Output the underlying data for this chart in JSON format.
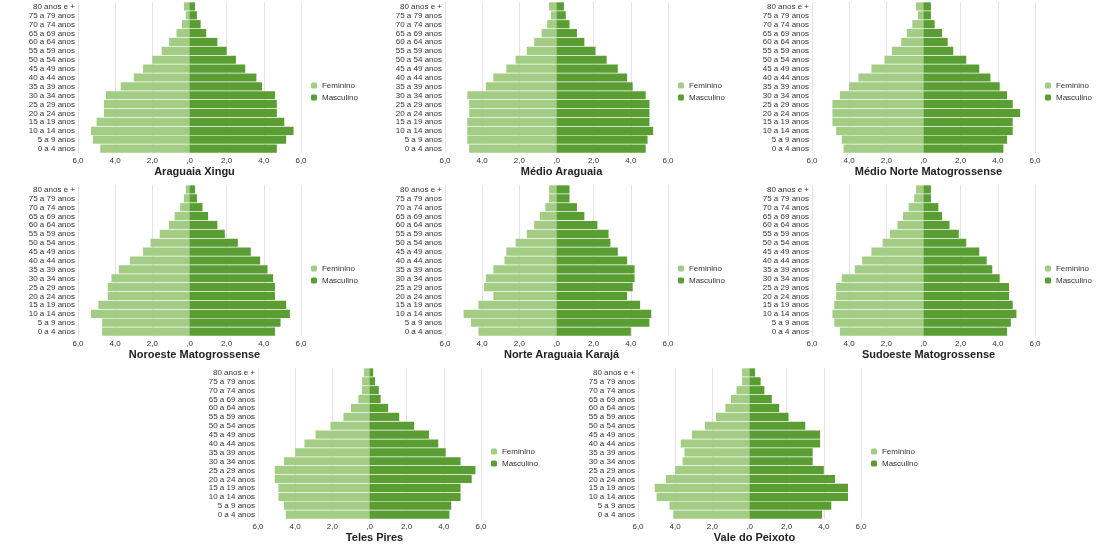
{
  "chart_data": [
    {
      "type": "bar",
      "title": "Araguaia Xingu",
      "orientation": "horizontal",
      "stacked": true,
      "categories": [
        "80 anos e +",
        "75 a 79 anos",
        "70 a 74 anos",
        "65 a 69 anos",
        "60 a 64 anos",
        "55 a 59 anos",
        "50 a 54 anos",
        "45 a 49 anos",
        "40 a 44 anos",
        "35 a 39 anos",
        "30 a 34 anos",
        "25 a 29 anos",
        "20 a 24 anos",
        "15 a 19 anos",
        "10 a 14 anos",
        "5 a 9 anos",
        "0 a 4 anos"
      ],
      "xlim": [
        -6,
        6
      ],
      "xticks": [
        {
          "value": -6,
          "label": "6,0"
        },
        {
          "value": -4,
          "label": "4,0"
        },
        {
          "value": -2,
          "label": "2,0"
        },
        {
          "value": 0,
          "label": ",0"
        },
        {
          "value": 2,
          "label": "2,0"
        },
        {
          "value": 4,
          "label": "4,0"
        },
        {
          "value": 6,
          "label": "6,0"
        }
      ],
      "grid": "x",
      "legend": "right",
      "series": [
        {
          "name": "Feminino",
          "color": "#a3cc84",
          "values": [
            -0.3,
            -0.2,
            -0.4,
            -0.7,
            -1.1,
            -1.5,
            -2.0,
            -2.5,
            -3.0,
            -3.7,
            -4.5,
            -4.6,
            -4.6,
            -5.0,
            -5.3,
            -5.2,
            -4.8
          ]
        },
        {
          "name": "Masculino",
          "color": "#5a9e33",
          "values": [
            0.3,
            0.4,
            0.6,
            0.9,
            1.5,
            2.0,
            2.5,
            3.0,
            3.6,
            3.9,
            4.6,
            4.7,
            4.7,
            5.1,
            5.6,
            5.2,
            4.7
          ]
        }
      ]
    },
    {
      "type": "bar",
      "title": "Médio Araguaia",
      "orientation": "horizontal",
      "stacked": true,
      "categories": [
        "80 anos e +",
        "75 a 79 anos",
        "70 a 74 anos",
        "65 a 69 anos",
        "60 a 64 anos",
        "55 a 59 anos",
        "50 a 54 anos",
        "45 a 49 anos",
        "40 a 44 anos",
        "35 a 39 anos",
        "30 a 34 anos",
        "25 a 29 anos",
        "20 a 24 anos",
        "15 a 19 anos",
        "10 a 14 anos",
        "5 a 9 anos",
        "0 a 4 anos"
      ],
      "xlim": [
        -6,
        6
      ],
      "xticks": [
        {
          "value": -6,
          "label": "6,0"
        },
        {
          "value": -4,
          "label": "4,0"
        },
        {
          "value": -2,
          "label": "2,0"
        },
        {
          "value": 0,
          "label": ",0"
        },
        {
          "value": 2,
          "label": "2,0"
        },
        {
          "value": 4,
          "label": "4,0"
        },
        {
          "value": 6,
          "label": "6,0"
        }
      ],
      "grid": "x",
      "legend": "right",
      "series": [
        {
          "name": "Feminino",
          "color": "#a3cc84",
          "values": [
            -0.4,
            -0.3,
            -0.5,
            -0.8,
            -1.2,
            -1.6,
            -2.2,
            -2.7,
            -3.4,
            -3.8,
            -4.8,
            -4.7,
            -4.7,
            -4.8,
            -4.8,
            -4.8,
            -4.7
          ]
        },
        {
          "name": "Masculino",
          "color": "#5a9e33",
          "values": [
            0.4,
            0.5,
            0.7,
            1.1,
            1.5,
            2.1,
            2.7,
            3.3,
            3.8,
            4.1,
            4.8,
            5.0,
            5.0,
            5.0,
            5.2,
            4.9,
            4.8
          ]
        }
      ]
    },
    {
      "type": "bar",
      "title": "Médio Norte Matogrossense",
      "orientation": "horizontal",
      "stacked": true,
      "categories": [
        "80 anos e +",
        "75 a 79 anos",
        "70 a 74 anos",
        "65 a 69 anos",
        "60 a 64 anos",
        "55 a 59 anos",
        "50 a 54 anos",
        "45 a 49 anos",
        "40 a 44 anos",
        "35 a 39 anos",
        "30 a 34 anos",
        "25 a 29 anos",
        "20 a 24 anos",
        "15 a 19 anos",
        "10 a 14 anos",
        "5 a 9 anos",
        "0 a 4 anos"
      ],
      "xlim": [
        -6,
        6
      ],
      "xticks": [
        {
          "value": -6,
          "label": "6,0"
        },
        {
          "value": -4,
          "label": "4,0"
        },
        {
          "value": -2,
          "label": "2,0"
        },
        {
          "value": 0,
          "label": ",0"
        },
        {
          "value": 2,
          "label": "2,0"
        },
        {
          "value": 4,
          "label": "4,0"
        },
        {
          "value": 6,
          "label": "6,0"
        }
      ],
      "grid": "x",
      "legend": "right",
      "series": [
        {
          "name": "Feminino",
          "color": "#a3cc84",
          "values": [
            -0.4,
            -0.3,
            -0.6,
            -0.9,
            -1.2,
            -1.7,
            -2.1,
            -2.8,
            -3.5,
            -4.0,
            -4.5,
            -4.9,
            -4.9,
            -4.9,
            -4.7,
            -4.4,
            -4.3
          ]
        },
        {
          "name": "Masculino",
          "color": "#5a9e33",
          "values": [
            0.4,
            0.4,
            0.6,
            1.0,
            1.3,
            1.6,
            2.3,
            3.0,
            3.6,
            4.1,
            4.5,
            4.8,
            5.2,
            4.8,
            4.8,
            4.5,
            4.3
          ]
        }
      ]
    },
    {
      "type": "bar",
      "title": "Noroeste Matogrossense",
      "orientation": "horizontal",
      "stacked": true,
      "categories": [
        "80 anos e +",
        "75 a 79 anos",
        "70 a 74 anos",
        "65 a 69 anos",
        "60 a 64 anos",
        "55 a 59 anos",
        "50 a 54 anos",
        "45 a 49 anos",
        "40 a 44 anos",
        "35 a 39 anos",
        "30 a 34 anos",
        "25 a 29 anos",
        "20 a 24 anos",
        "15 a 19 anos",
        "10 a 14 anos",
        "5 a 9 anos",
        "0 a 4 anos"
      ],
      "xlim": [
        -6,
        6
      ],
      "xticks": [
        {
          "value": -6,
          "label": "6,0"
        },
        {
          "value": -4,
          "label": "4,0"
        },
        {
          "value": -2,
          "label": "2,0"
        },
        {
          "value": 0,
          "label": ",0"
        },
        {
          "value": 2,
          "label": "2,0"
        },
        {
          "value": 4,
          "label": "4,0"
        },
        {
          "value": 6,
          "label": "6,0"
        }
      ],
      "grid": "x",
      "legend": "right",
      "series": [
        {
          "name": "Feminino",
          "color": "#a3cc84",
          "values": [
            -0.2,
            -0.3,
            -0.5,
            -0.8,
            -1.1,
            -1.6,
            -2.1,
            -2.5,
            -3.2,
            -3.8,
            -4.2,
            -4.4,
            -4.4,
            -4.9,
            -5.3,
            -4.7,
            -4.7
          ]
        },
        {
          "name": "Masculino",
          "color": "#5a9e33",
          "values": [
            0.3,
            0.4,
            0.7,
            1.0,
            1.5,
            1.9,
            2.6,
            3.3,
            3.8,
            4.2,
            4.5,
            4.6,
            4.6,
            5.2,
            5.4,
            4.9,
            4.6
          ]
        }
      ]
    },
    {
      "type": "bar",
      "title": "Norte Araguaia Karajá",
      "orientation": "horizontal",
      "stacked": true,
      "categories": [
        "80 anos e +",
        "75 a 79 anos",
        "70 a 74 anos",
        "65 a 69 anos",
        "60 a 64 anos",
        "55 a 59 anos",
        "50 a 54 anos",
        "45 a 49 anos",
        "40 a 44 anos",
        "35 a 39 anos",
        "30 a 34 anos",
        "25 a 29 anos",
        "20 a 24 anos",
        "15 a 19 anos",
        "10 a 14 anos",
        "5 a 9 anos",
        "0 a 4 anos"
      ],
      "xlim": [
        -6,
        6
      ],
      "xticks": [
        {
          "value": -6,
          "label": "6,0"
        },
        {
          "value": -4,
          "label": "4,0"
        },
        {
          "value": -2,
          "label": "2,0"
        },
        {
          "value": 0,
          "label": ",0"
        },
        {
          "value": 2,
          "label": "2,0"
        },
        {
          "value": 4,
          "label": "4,0"
        },
        {
          "value": 6,
          "label": "6,0"
        }
      ],
      "grid": "x",
      "legend": "right",
      "series": [
        {
          "name": "Feminino",
          "color": "#a3cc84",
          "values": [
            -0.4,
            -0.4,
            -0.6,
            -0.9,
            -1.2,
            -1.6,
            -2.2,
            -2.7,
            -2.8,
            -3.4,
            -3.8,
            -3.9,
            -3.4,
            -4.2,
            -5.0,
            -4.6,
            -4.2
          ]
        },
        {
          "name": "Masculino",
          "color": "#5a9e33",
          "values": [
            0.7,
            0.7,
            1.1,
            1.5,
            2.2,
            2.8,
            2.9,
            3.3,
            3.8,
            4.2,
            4.2,
            4.1,
            3.8,
            4.5,
            5.1,
            5.0,
            4.0
          ]
        }
      ]
    },
    {
      "type": "bar",
      "title": "Sudoeste Matogrossense",
      "orientation": "horizontal",
      "stacked": true,
      "categories": [
        "80 anos e +",
        "75 a 79 anos",
        "70 a 74 anos",
        "65 a 69 anos",
        "60 a 64 anos",
        "55 a 59 anos",
        "50 a 54 anos",
        "45 a 49 anos",
        "40 a 44 anos",
        "35 a 39 anos",
        "30 a 34 anos",
        "25 a 29 anos",
        "20 a 24 anos",
        "15 a 19 anos",
        "10 a 14 anos",
        "5 a 9 anos",
        "0 a 4 anos"
      ],
      "xlim": [
        -6,
        6
      ],
      "xticks": [
        {
          "value": -6,
          "label": "6,0"
        },
        {
          "value": -4,
          "label": "4,0"
        },
        {
          "value": -2,
          "label": "2,0"
        },
        {
          "value": 0,
          "label": ",0"
        },
        {
          "value": 2,
          "label": "2,0"
        },
        {
          "value": 4,
          "label": "4,0"
        },
        {
          "value": 6,
          "label": "6,0"
        }
      ],
      "grid": "x",
      "legend": "right",
      "series": [
        {
          "name": "Feminino",
          "color": "#a3cc84",
          "values": [
            -0.4,
            -0.5,
            -0.8,
            -1.1,
            -1.4,
            -1.8,
            -2.2,
            -2.8,
            -3.3,
            -3.7,
            -4.4,
            -4.7,
            -4.7,
            -4.8,
            -4.9,
            -4.8,
            -4.5
          ]
        },
        {
          "name": "Masculino",
          "color": "#5a9e33",
          "values": [
            0.4,
            0.4,
            0.8,
            1.0,
            1.4,
            1.9,
            2.3,
            3.0,
            3.4,
            3.7,
            4.1,
            4.6,
            4.6,
            4.8,
            5.0,
            4.7,
            4.5
          ]
        }
      ]
    },
    {
      "type": "bar",
      "title": "Teles Pires",
      "orientation": "horizontal",
      "stacked": true,
      "categories": [
        "80 anos e +",
        "75 a 79 anos",
        "70 a 74 anos",
        "65 a 69 anos",
        "60 a 64 anos",
        "55 a 59 anos",
        "50 a 54 anos",
        "45 a 49 anos",
        "40 a 44 anos",
        "35 a 39 anos",
        "30 a 34 anos",
        "25 a 29 anos",
        "20 a 24 anos",
        "15 a 19 anos",
        "10 a 14 anos",
        "5 a 9 anos",
        "0 a 4 anos"
      ],
      "xlim": [
        -6,
        6
      ],
      "xticks": [
        {
          "value": -6,
          "label": "6,0"
        },
        {
          "value": -4,
          "label": "4,0"
        },
        {
          "value": -2,
          "label": "2,0"
        },
        {
          "value": 0,
          "label": ",0"
        },
        {
          "value": 2,
          "label": "2,0"
        },
        {
          "value": 4,
          "label": "4,0"
        },
        {
          "value": 6,
          "label": "6,0"
        }
      ],
      "grid": "x",
      "legend": "right",
      "series": [
        {
          "name": "Feminino",
          "color": "#a3cc84",
          "values": [
            -0.3,
            -0.4,
            -0.4,
            -0.6,
            -1.0,
            -1.4,
            -2.1,
            -2.9,
            -3.5,
            -4.0,
            -4.6,
            -5.1,
            -5.1,
            -4.9,
            -4.9,
            -4.6,
            -4.5
          ]
        },
        {
          "name": "Masculino",
          "color": "#5a9e33",
          "values": [
            0.2,
            0.3,
            0.5,
            0.6,
            1.0,
            1.6,
            2.4,
            3.2,
            3.7,
            4.1,
            4.9,
            5.7,
            5.5,
            4.9,
            4.9,
            4.4,
            4.3
          ]
        }
      ]
    },
    {
      "type": "bar",
      "title": "Vale do Peixoto",
      "orientation": "horizontal",
      "stacked": true,
      "categories": [
        "80 anos e +",
        "75 a 79 anos",
        "70 a 74 anos",
        "65 a 69 anos",
        "60 a 64 anos",
        "55 a 59 anos",
        "50 a 54 anos",
        "45 a 49 anos",
        "40 a 44 anos",
        "35 a 39 anos",
        "30 a 34 anos",
        "25 a 29 anos",
        "20 a 24 anos",
        "15 a 19 anos",
        "10 a 14 anos",
        "5 a 9 anos",
        "0 a 4 anos"
      ],
      "xlim": [
        -6,
        6
      ],
      "xticks": [
        {
          "value": -6,
          "label": "6,0"
        },
        {
          "value": -4,
          "label": "4,0"
        },
        {
          "value": -2,
          "label": "2,0"
        },
        {
          "value": 0,
          "label": ",0"
        },
        {
          "value": 2,
          "label": "2,0"
        },
        {
          "value": 4,
          "label": "4,0"
        },
        {
          "value": 6,
          "label": "6,0"
        }
      ],
      "grid": "x",
      "legend": "right",
      "series": [
        {
          "name": "Feminino",
          "color": "#a3cc84",
          "values": [
            -0.4,
            -0.4,
            -0.7,
            -1.0,
            -1.3,
            -1.8,
            -2.4,
            -3.1,
            -3.7,
            -3.5,
            -3.6,
            -4.0,
            -4.5,
            -5.1,
            -5.0,
            -4.3,
            -4.1
          ]
        },
        {
          "name": "Masculino",
          "color": "#5a9e33",
          "values": [
            0.3,
            0.6,
            0.8,
            1.2,
            1.6,
            2.1,
            3.0,
            3.8,
            3.8,
            3.4,
            3.4,
            4.0,
            4.6,
            5.3,
            5.3,
            4.4,
            3.9
          ]
        }
      ]
    }
  ]
}
